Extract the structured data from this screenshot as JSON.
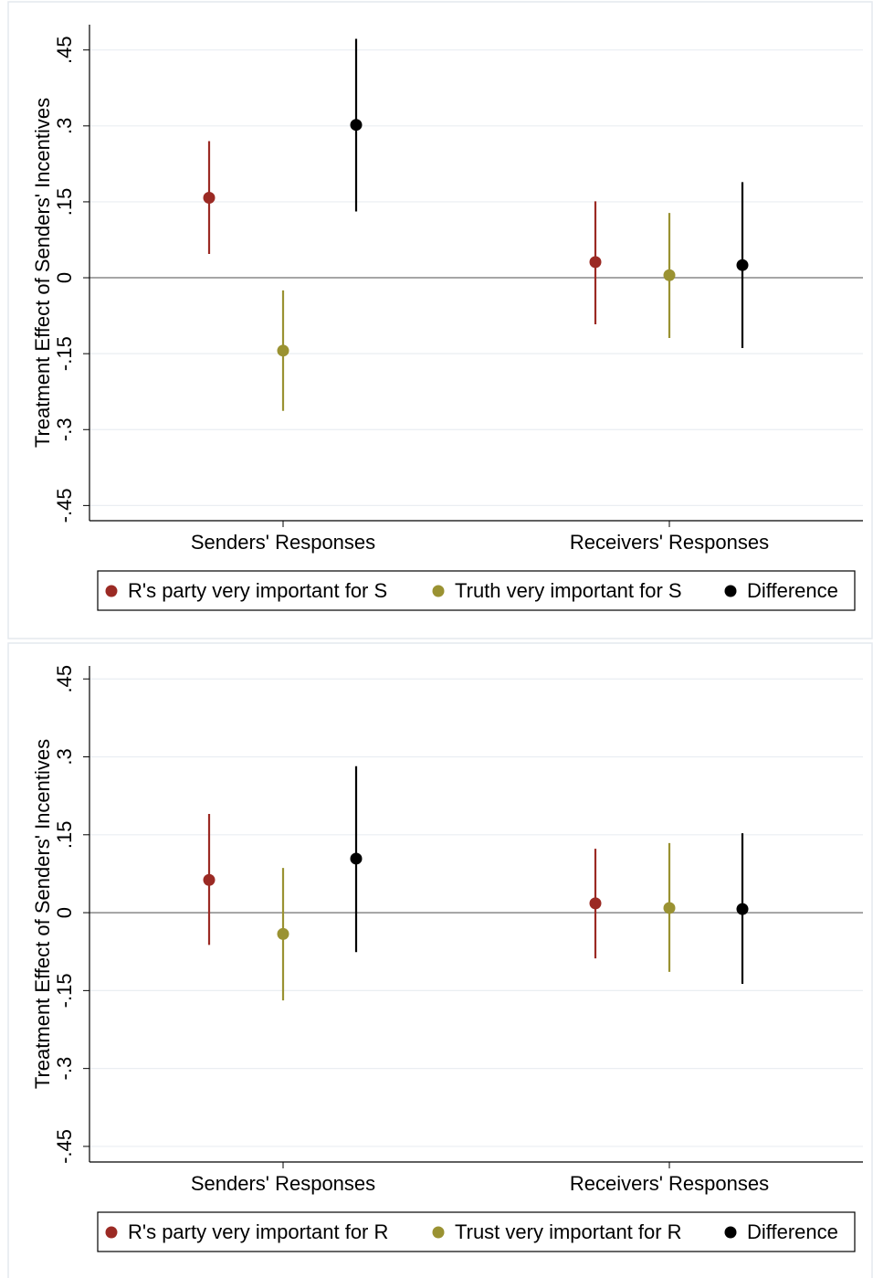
{
  "chart_data": [
    {
      "type": "errorbar",
      "y_label": "Treatment Effect of Senders' Incentives",
      "categories": [
        "Senders' Responses",
        "Receivers' Responses"
      ],
      "series": [
        {
          "name": "R's party very important for S",
          "color": "#9b2a24",
          "values": [
            0.158,
            0.031
          ],
          "lower": [
            0.047,
            -0.092
          ],
          "upper": [
            0.27,
            0.151
          ]
        },
        {
          "name": "Truth very important for S",
          "color": "#9a9232",
          "values": [
            -0.144,
            0.005
          ],
          "lower": [
            -0.263,
            -0.119
          ],
          "upper": [
            -0.025,
            0.128
          ]
        },
        {
          "name": "Difference",
          "color": "#000000",
          "values": [
            0.302,
            0.025
          ],
          "lower": [
            0.131,
            -0.139
          ],
          "upper": [
            0.472,
            0.189
          ]
        }
      ],
      "ylim": [
        -0.48,
        0.5
      ],
      "yticks": [
        {
          "value": -0.45,
          "label": "-.45"
        },
        {
          "value": -0.3,
          "label": "-.3"
        },
        {
          "value": -0.15,
          "label": "-.15"
        },
        0,
        {
          "value": 0.15,
          "label": ".15"
        },
        {
          "value": 0.3,
          "label": ".3"
        },
        {
          "value": 0.45,
          "label": ".45"
        }
      ],
      "grid": true,
      "legend": "bottom"
    },
    {
      "type": "errorbar",
      "y_label": "Treatment Effect of Senders' Incentives",
      "categories": [
        "Senders' Responses",
        "Receivers' Responses"
      ],
      "series": [
        {
          "name": "R's party very important for R",
          "color": "#9b2a24",
          "values": [
            0.063,
            0.018
          ],
          "lower": [
            -0.062,
            -0.088
          ],
          "upper": [
            0.19,
            0.123
          ]
        },
        {
          "name": "Trust very important for R",
          "color": "#9a9232",
          "values": [
            -0.041,
            0.009
          ],
          "lower": [
            -0.169,
            -0.114
          ],
          "upper": [
            0.086,
            0.134
          ]
        },
        {
          "name": "Difference",
          "color": "#000000",
          "values": [
            0.104,
            0.007
          ],
          "lower": [
            -0.076,
            -0.137
          ],
          "upper": [
            0.282,
            0.153
          ]
        }
      ],
      "ylim": [
        -0.48,
        0.475
      ],
      "yticks": [
        {
          "value": -0.45,
          "label": "-.45"
        },
        {
          "value": -0.3,
          "label": "-.3"
        },
        {
          "value": -0.15,
          "label": "-.15"
        },
        0,
        {
          "value": 0.15,
          "label": ".15"
        },
        {
          "value": 0.3,
          "label": ".3"
        },
        {
          "value": 0.45,
          "label": ".45"
        }
      ],
      "grid": true,
      "legend": "bottom"
    }
  ]
}
